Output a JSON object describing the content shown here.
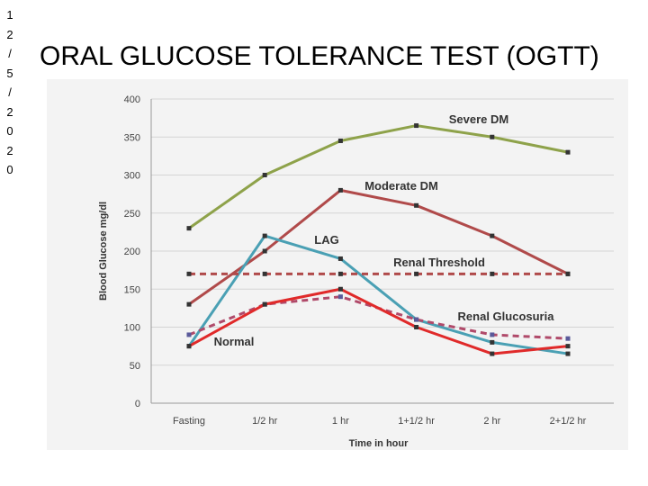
{
  "date_stamp": [
    "1",
    "2",
    "/",
    "5",
    "/",
    "2",
    "0",
    "2",
    "0"
  ],
  "slide": {
    "title": "ORAL GLUCOSE TOLERANCE TEST (OGTT)"
  },
  "chart_data": {
    "type": "line",
    "title": "ORAL GLUCOSE TOLERANCE TEST (OGTT)",
    "xlabel": "Time in hour",
    "ylabel": "Blood Glucose  mg/dl",
    "categories": [
      "Fasting",
      "1/2 hr",
      "1 hr",
      "1+1/2 hr",
      "2 hr",
      "2+1/2 hr"
    ],
    "ylim": [
      0,
      400
    ],
    "yticks": [
      "0",
      "50",
      "100",
      "150",
      "200",
      "250",
      "300",
      "350",
      "400"
    ],
    "grid": true,
    "series": [
      {
        "name": "Severe DM",
        "color": "#8ea24a",
        "style": "solid",
        "values": [
          230,
          300,
          345,
          365,
          350,
          330
        ]
      },
      {
        "name": "Moderate DM",
        "color": "#b04a4a",
        "style": "solid",
        "values": [
          130,
          200,
          280,
          260,
          220,
          170
        ]
      },
      {
        "name": "LAG",
        "color": "#4aa0b4",
        "style": "solid",
        "values": [
          75,
          220,
          190,
          110,
          80,
          65
        ]
      },
      {
        "name": "Renal Threshold",
        "color": "#b04a4a",
        "style": "dashed",
        "values": [
          170,
          170,
          170,
          170,
          170,
          170
        ]
      },
      {
        "name": "Renal Glucosuria",
        "color": "#b04a6a",
        "style": "dashed",
        "values": [
          90,
          130,
          140,
          110,
          90,
          85
        ]
      },
      {
        "name": "Normal",
        "color": "#e02a2a",
        "style": "solid",
        "values": [
          75,
          130,
          150,
          100,
          65,
          75
        ]
      }
    ],
    "labels": [
      "Severe DM",
      "Moderate DM",
      "LAG",
      "Renal Threshold",
      "Renal Glucosuria",
      "Normal"
    ]
  }
}
